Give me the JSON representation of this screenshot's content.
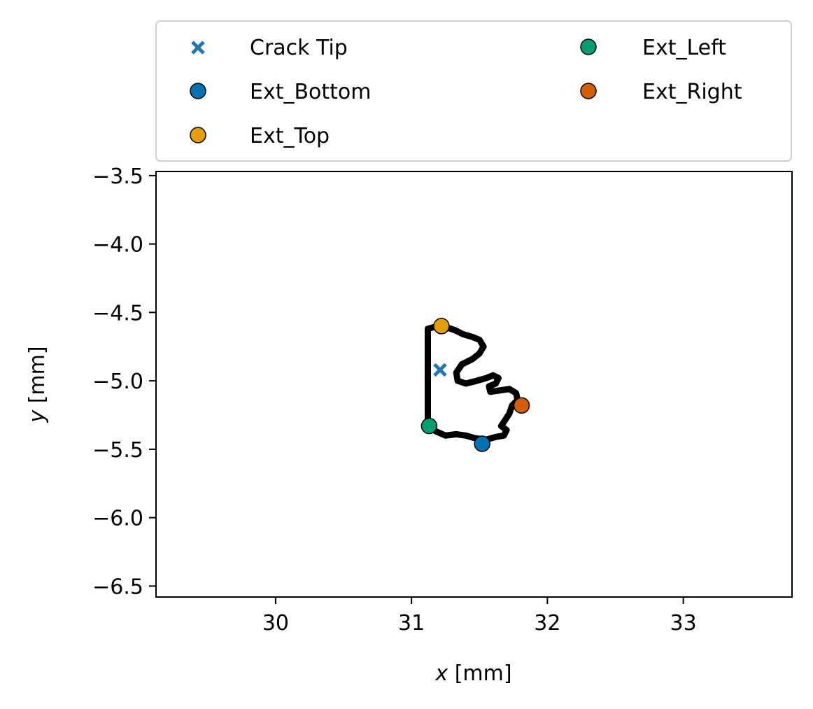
{
  "chart_data": {
    "type": "scatter",
    "title": "",
    "xlabel_var": "x",
    "xlabel_unit": " [mm]",
    "ylabel_var": "y",
    "ylabel_unit": " [mm]",
    "xlim": [
      29.12,
      33.8
    ],
    "ylim": [
      -6.58,
      -3.47
    ],
    "xticks": [
      30,
      31,
      32,
      33
    ],
    "xtick_labels": [
      "30",
      "31",
      "32",
      "33"
    ],
    "yticks": [
      -3.5,
      -4.0,
      -4.5,
      -5.0,
      -5.5,
      -6.0,
      -6.5
    ],
    "ytick_labels": [
      "−3.5",
      "−4.0",
      "−4.5",
      "−5.0",
      "−5.5",
      "−6.0",
      "−6.5"
    ],
    "grid": false,
    "legend_position": "top (above plot), 2 columns",
    "contour": {
      "color": "#000000",
      "points": [
        [
          31.12,
          -5.31
        ],
        [
          31.12,
          -4.62
        ],
        [
          31.19,
          -4.6
        ],
        [
          31.26,
          -4.61
        ],
        [
          31.32,
          -4.63
        ],
        [
          31.38,
          -4.66
        ],
        [
          31.45,
          -4.68
        ],
        [
          31.5,
          -4.7
        ],
        [
          31.53,
          -4.75
        ],
        [
          31.5,
          -4.8
        ],
        [
          31.45,
          -4.84
        ],
        [
          31.37,
          -4.88
        ],
        [
          31.33,
          -4.94
        ],
        [
          31.34,
          -5.0
        ],
        [
          31.4,
          -5.02
        ],
        [
          31.48,
          -5.0
        ],
        [
          31.55,
          -4.98
        ],
        [
          31.6,
          -4.96
        ],
        [
          31.64,
          -4.98
        ],
        [
          31.62,
          -5.02
        ],
        [
          31.57,
          -5.04
        ],
        [
          31.58,
          -5.08
        ],
        [
          31.65,
          -5.07
        ],
        [
          31.72,
          -5.06
        ],
        [
          31.77,
          -5.09
        ],
        [
          31.78,
          -5.14
        ],
        [
          31.74,
          -5.18
        ],
        [
          31.72,
          -5.24
        ],
        [
          31.68,
          -5.3
        ],
        [
          31.66,
          -5.33
        ],
        [
          31.7,
          -5.36
        ],
        [
          31.68,
          -5.4
        ],
        [
          31.62,
          -5.41
        ],
        [
          31.55,
          -5.43
        ],
        [
          31.47,
          -5.42
        ],
        [
          31.4,
          -5.4
        ],
        [
          31.33,
          -5.39
        ],
        [
          31.25,
          -5.4
        ],
        [
          31.18,
          -5.37
        ],
        [
          31.12,
          -5.31
        ]
      ]
    },
    "series": [
      {
        "name": "Crack Tip",
        "marker": "x",
        "color": "#1f77b4",
        "x": [
          31.21
        ],
        "y": [
          -4.92
        ]
      },
      {
        "name": "Ext_Bottom",
        "marker": "o",
        "color": "#0072b2",
        "x": [
          31.52
        ],
        "y": [
          -5.46
        ]
      },
      {
        "name": "Ext_Top",
        "marker": "o",
        "color": "#e69f00",
        "x": [
          31.22
        ],
        "y": [
          -4.6
        ]
      },
      {
        "name": "Ext_Left",
        "marker": "o",
        "color": "#009e73",
        "x": [
          31.13
        ],
        "y": [
          -5.33
        ]
      },
      {
        "name": "Ext_Right",
        "marker": "o",
        "color": "#d55e00",
        "x": [
          31.81
        ],
        "y": [
          -5.18
        ]
      }
    ]
  }
}
